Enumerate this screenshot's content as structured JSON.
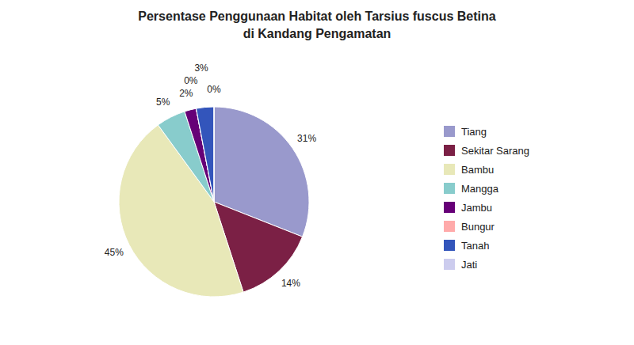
{
  "chart_data": {
    "type": "pie",
    "title": "Persentase Penggunaan Habitat oleh Tarsius fuscus Betina",
    "subtitle": "di Kandang Pengamatan",
    "categories": [
      "Tiang",
      "Sekitar Sarang",
      "Bambu",
      "Mangga",
      "Jambu",
      "Bungur",
      "Tanah",
      "Jati"
    ],
    "values": [
      31,
      14,
      45,
      5,
      2,
      0,
      3,
      0
    ],
    "value_labels": [
      "31%",
      "14%",
      "45%",
      "5%",
      "2%",
      "0%",
      "3%",
      "0%"
    ],
    "colors": [
      "#9999cc",
      "#7b2045",
      "#e8e8b8",
      "#88cccc",
      "#660077",
      "#ffaaaa",
      "#3355bb",
      "#ccccee"
    ],
    "legend": "right",
    "data_labels": true
  }
}
